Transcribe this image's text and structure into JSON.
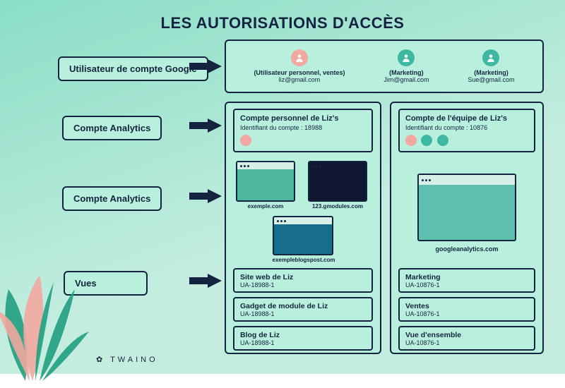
{
  "colors": {
    "bg_top": "#8adec6",
    "bg_bottom": "#c4ede0",
    "ink": "#142440",
    "panel": "#b9f0dd",
    "panel_border": "#142440",
    "avatar_pink": "#f2a7a0",
    "avatar_teal": "#3fb8a3",
    "thumb_teal": "#4fb6a0",
    "thumb_navy": "#0f1630",
    "thumb_blue": "#176e8c",
    "thumb_big": "#5dbfae",
    "leaf_green": "#219f80",
    "leaf_pink": "#f2a7a0"
  },
  "title": "LES AUTORISATIONS D'ACCÈS",
  "labels": {
    "google_user": "Utilisateur de compte Google",
    "analytics_account": "Compte Analytics",
    "analytics_property": "Compte Analytics",
    "views": "Vues"
  },
  "users": [
    {
      "role": "(Utilisateur personnel, ventes)",
      "email": "liz@gmail.com",
      "avatar_color": "#f2a7a0"
    },
    {
      "role": "(Marketing)",
      "email": "Jim@gmail.com",
      "avatar_color": "#3fb8a3"
    },
    {
      "role": "(Marketing)",
      "email": "Sue@gmail.com",
      "avatar_color": "#3fb8a3"
    }
  ],
  "accounts": [
    {
      "name": "Compte personnel de Liz's",
      "id_label": "Identifiant du compte : 18988",
      "member_avatars": [
        "#f2a7a0"
      ],
      "properties": [
        {
          "label": "exemple.com",
          "fill": "#4fb6a0",
          "bar": "#d6efe7"
        },
        {
          "label": "123.gmodules.com",
          "fill": "#0f1630",
          "bar": "#0f1630"
        },
        {
          "label": "exempleblogspost.com",
          "fill": "#176e8c",
          "bar": "#d6efe7"
        }
      ],
      "views": [
        {
          "name": "Site web de Liz",
          "id": "UA-18988-1"
        },
        {
          "name": "Gadget de module de Liz",
          "id": "UA-18988-1"
        },
        {
          "name": "Blog de Liz",
          "id": "UA-18988-1"
        }
      ]
    },
    {
      "name": "Compte de l'équipe de Liz's",
      "id_label": "Identifiant du compte : 10876",
      "member_avatars": [
        "#f2a7a0",
        "#3fb8a3",
        "#3fb8a3"
      ],
      "properties_single": {
        "label": "googleanalytics.com",
        "fill": "#5dbfae",
        "bar": "#d6efe7"
      },
      "views": [
        {
          "name": "Marketing",
          "id": "UA-10876-1"
        },
        {
          "name": "Ventes",
          "id": "UA-10876-1"
        },
        {
          "name": "Vue d'ensemble",
          "id": "UA-10876-1"
        }
      ]
    }
  ],
  "brand": "TWAINO"
}
